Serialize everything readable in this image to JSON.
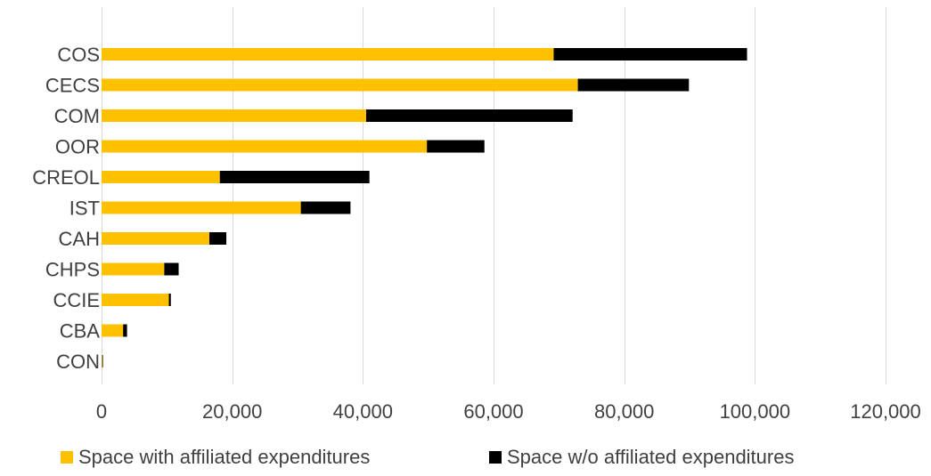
{
  "chart_data": {
    "type": "bar",
    "orientation": "horizontal",
    "stacked": true,
    "categories": [
      "COS",
      "CECS",
      "COM",
      "OOR",
      "CREOL",
      "IST",
      "CAH",
      "CHPS",
      "CCIE",
      "CBA",
      "CON"
    ],
    "series": [
      {
        "name": "Space with affiliated expenditures",
        "color": "#FFC000",
        "values": [
          69200,
          72900,
          40500,
          49800,
          18100,
          30500,
          16500,
          9600,
          10300,
          3300,
          100
        ]
      },
      {
        "name": "Space w/o affiliated expenditures",
        "color": "#000000",
        "values": [
          29600,
          17000,
          31600,
          8800,
          22900,
          7600,
          2600,
          2200,
          300,
          600,
          100
        ]
      }
    ],
    "xlim": [
      0,
      120000
    ],
    "x_ticks": [
      "0",
      "20,000",
      "40,000",
      "60,000",
      "80,000",
      "100,000",
      "120,000"
    ],
    "x_tick_values": [
      0,
      20000,
      40000,
      60000,
      80000,
      100000,
      120000
    ],
    "grid": true,
    "legend_position": "bottom",
    "title": "",
    "xlabel": "",
    "ylabel": ""
  }
}
